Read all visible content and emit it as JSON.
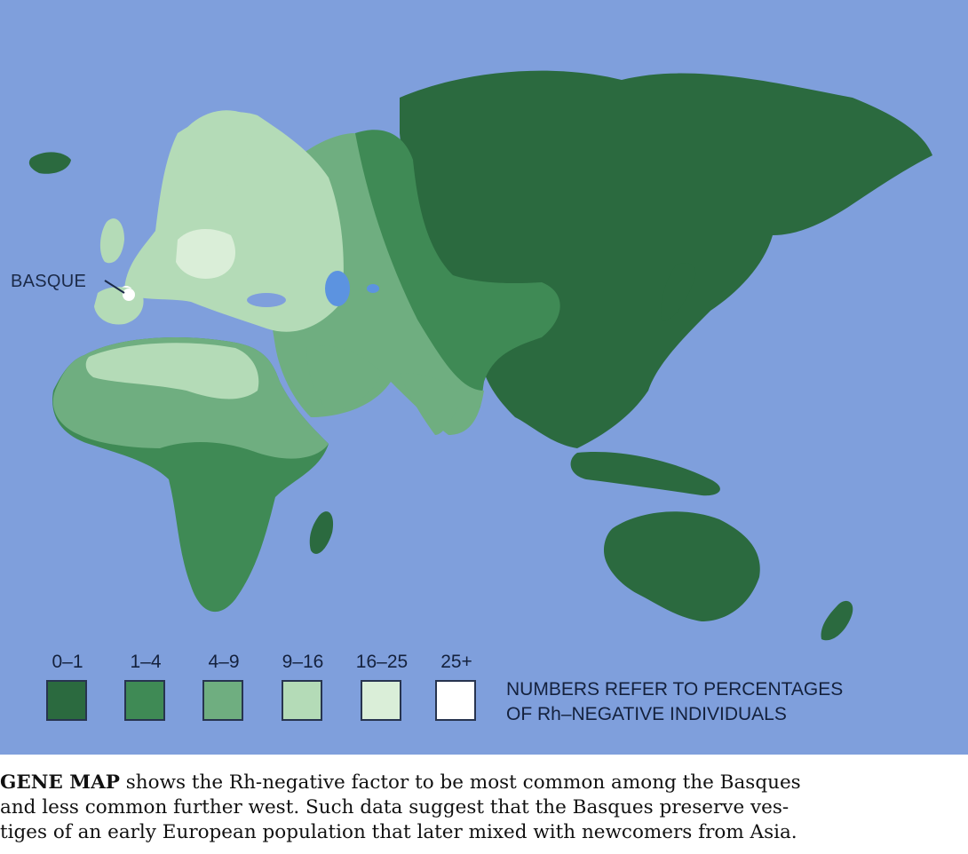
{
  "map": {
    "callout_label": "BASQUE",
    "colors": {
      "ocean": "#7f9fdc",
      "lake": "#5c93e0",
      "range_0_1": "#2b6a3f",
      "range_1_4": "#3f8a55",
      "range_4_9": "#6fae80",
      "range_9_16": "#b4dbb7",
      "range_16_25": "#daeed8",
      "range_25_plus": "#ffffff"
    }
  },
  "legend": {
    "items": [
      {
        "label": "0–1",
        "color": "#2b6a3f"
      },
      {
        "label": "1–4",
        "color": "#3f8a55"
      },
      {
        "label": "4–9",
        "color": "#6fae80"
      },
      {
        "label": "9–16",
        "color": "#b4dbb7"
      },
      {
        "label": "16–25",
        "color": "#daeed8"
      },
      {
        "label": "25+",
        "color": "#ffffff"
      }
    ],
    "note_line1": "NUMBERS REFER TO PERCENTAGES",
    "note_line2": "OF Rh–NEGATIVE INDIVIDUALS"
  },
  "caption": {
    "lead": "GENE MAP",
    "line1": " shows the Rh-negative factor to be most common among the Basques",
    "line2": "and less common further west. Such data suggest that the Basques preserve ves-",
    "line3": "tiges of an early European population that later mixed with newcomers from Asia."
  }
}
